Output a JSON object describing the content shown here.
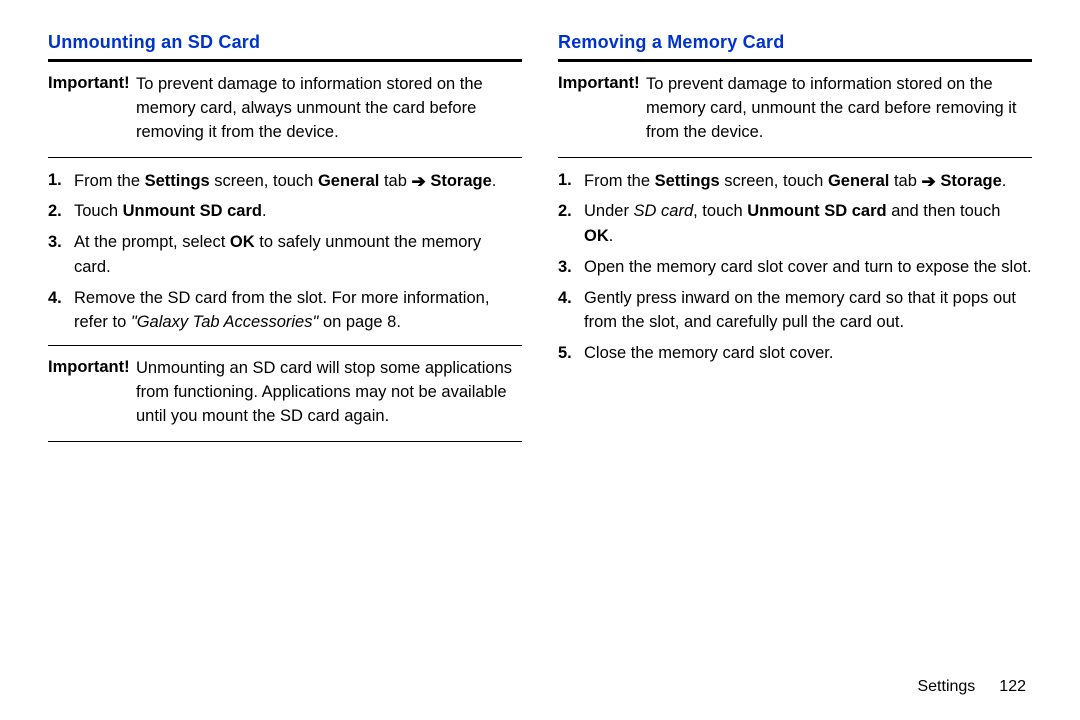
{
  "colors": {
    "heading": "#0033cc",
    "text": "#000000",
    "background": "#ffffff",
    "rule": "#000000"
  },
  "typography": {
    "base_fontsize_pt": 12,
    "heading_fontsize_pt": 13,
    "line_height": 1.45
  },
  "left": {
    "heading": "Unmounting an SD Card",
    "important1_label": "Important!",
    "important1_text": "To prevent damage to information stored on the memory card, always unmount the card before removing it from the device.",
    "steps": [
      {
        "num": "1.",
        "pre": "From the ",
        "b1": "Settings",
        "mid1": " screen, touch ",
        "b2": "General",
        "mid2": " tab ",
        "arrow": "➔",
        "post_b": " Storage",
        "post": "."
      },
      {
        "num": "2.",
        "pre": "Touch ",
        "b1": "Unmount SD card",
        "post": "."
      },
      {
        "num": "3.",
        "pre": "At the prompt, select ",
        "b1": "OK",
        "post": " to safely unmount the memory card."
      },
      {
        "num": "4.",
        "pre": "Remove the SD card from the slot. For more information, refer to ",
        "i1": "\"Galaxy Tab Accessories\"",
        "post": " on page 8."
      }
    ],
    "important2_label": "Important!",
    "important2_text": "Unmounting an SD card will stop some applications from functioning. Applications may not be available until you mount the SD card again."
  },
  "right": {
    "heading": "Removing a Memory Card",
    "important1_label": "Important!",
    "important1_text": "To prevent damage to information stored on the memory card, unmount the card before removing it from the device.",
    "steps": [
      {
        "num": "1.",
        "pre": "From the ",
        "b1": "Settings",
        "mid1": " screen, touch ",
        "b2": "General",
        "mid2": " tab ",
        "arrow": "➔",
        "post_b": " Storage",
        "post": "."
      },
      {
        "num": "2.",
        "pre": "Under ",
        "i1": "SD card",
        "mid1": ", touch ",
        "b1": "Unmount SD card",
        "mid2": " and then touch ",
        "b2": "OK",
        "post": "."
      },
      {
        "num": "3.",
        "pre": "Open the memory card slot cover and turn to expose the slot.",
        "post": ""
      },
      {
        "num": "4.",
        "pre": "Gently press inward on the memory card so that it pops out from the slot, and carefully pull the card out.",
        "post": ""
      },
      {
        "num": "5.",
        "pre": "Close the memory card slot cover.",
        "post": ""
      }
    ]
  },
  "footer": {
    "section": "Settings",
    "page": "122"
  }
}
